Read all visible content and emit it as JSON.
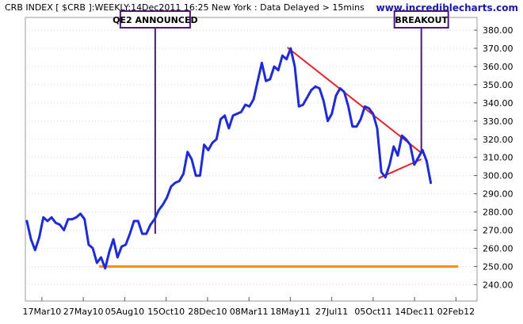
{
  "header": {
    "title": "CRB INDEX [ $CRB ]:WEEKLY:14Dec2011 16:25 New York  : Data Delayed > 15mins",
    "brand": "www.incrediblecharts.com"
  },
  "colors": {
    "price_line": "#1f2bd6",
    "trend_lines": "#e8202a",
    "support_line": "#ff8c00",
    "annotation_border": "#4b1a78",
    "grid": "#d8d8d8",
    "brand_text": "#1a1aa6"
  },
  "chart_data": {
    "type": "line",
    "title": "CRB INDEX [ $CRB ]:WEEKLY:14Dec2011 16:25 New York  : Data Delayed > 15mins",
    "xlabel": "",
    "ylabel": "",
    "x_ticks": [
      "17Mar10",
      "27May10",
      "05Aug10",
      "15Oct10",
      "28Dec10",
      "08Mar11",
      "18May11",
      "27Jul11",
      "05Oct11",
      "14Dec11",
      "02Feb12"
    ],
    "xlim": [
      0,
      60
    ],
    "ylim": [
      231,
      387
    ],
    "y_ticks": [
      240,
      250,
      260,
      270,
      280,
      290,
      300,
      310,
      320,
      330,
      340,
      350,
      360,
      370,
      380
    ],
    "y_tick_labels": [
      "240.00",
      "250.00",
      "260.00",
      "270.00",
      "280.00",
      "290.00",
      "300.00",
      "310.00",
      "320.00",
      "330.00",
      "340.00",
      "350.00",
      "360.00",
      "370.00",
      "380.00"
    ],
    "y_axis_side": "right",
    "grid": false,
    "series": [
      {
        "values": [
          275,
          265,
          259,
          266,
          277,
          275,
          277,
          274,
          273,
          270,
          276,
          276,
          277,
          279,
          276,
          262,
          260,
          252,
          255,
          249,
          258,
          265,
          255,
          261,
          262,
          268,
          275,
          275,
          268,
          268,
          273,
          276,
          281,
          284,
          288,
          294,
          296,
          297,
          301,
          313,
          309,
          300,
          300,
          317,
          314,
          318,
          320,
          331,
          333,
          326,
          333,
          334,
          335,
          339,
          338,
          342,
          352,
          362,
          352,
          353,
          360,
          358,
          366,
          364,
          370,
          360,
          338,
          339,
          343,
          347,
          349,
          348,
          341,
          330,
          334,
          344,
          348,
          346,
          338,
          327,
          327,
          331,
          338,
          337,
          334,
          326,
          302,
          299,
          306,
          316,
          311,
          322,
          320,
          317,
          306,
          310,
          314,
          308,
          296
        ]
      }
    ],
    "annotations": [
      {
        "label": "QE2 ANNOUNCED",
        "x": 17.25,
        "y": 268
      },
      {
        "label": "BREAKOUT",
        "x": 52.6,
        "y": 312
      }
    ],
    "trend_lines": [
      {
        "x": [
          34.8,
          52.6
        ],
        "y": [
          370.5,
          312.5
        ]
      },
      {
        "x": [
          46.9,
          52.6
        ],
        "y": [
          298.5,
          309
        ]
      }
    ],
    "support_line": {
      "x": [
        9.8,
        57.5
      ],
      "y": [
        250,
        250
      ]
    }
  }
}
